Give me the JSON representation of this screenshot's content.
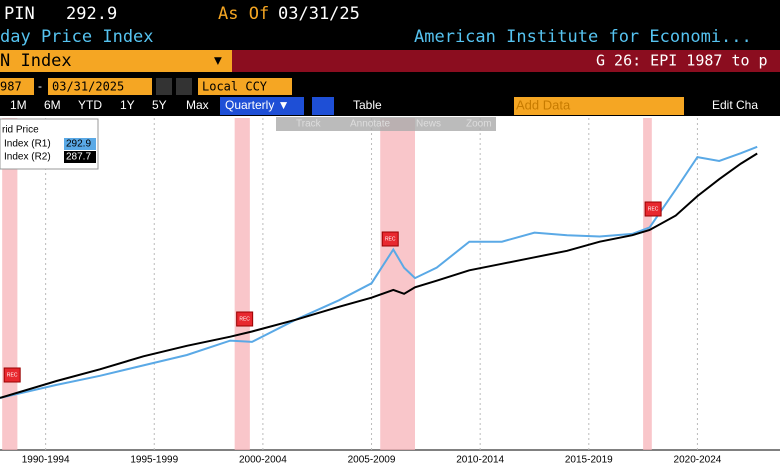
{
  "header": {
    "ticker": "PIN",
    "last_price": "292.9",
    "as_of_label": "As Of",
    "as_of_date": "03/31/25",
    "security_name": "day Price Index",
    "source": "American Institute for Economi...",
    "security_field": "N Index",
    "function_title": "G 26: EPI 1987 to p",
    "start_date": "987",
    "end_date": "03/31/2025",
    "currency": "Local CCY",
    "ranges": [
      "1M",
      "6M",
      "YTD",
      "1Y",
      "5Y",
      "Max"
    ],
    "frequency": "Quarterly ▼",
    "table_button": "Table",
    "add_data": "Add Data",
    "edit_chart": "Edit Cha",
    "tools": [
      "Track",
      "Annotate",
      "News",
      "Zoom"
    ]
  },
  "chart_data": {
    "type": "line",
    "legend_title": "rid Price",
    "x": [
      1990.4,
      1993,
      1995,
      1997,
      1999,
      2001,
      2002,
      2004,
      2006,
      2007.5,
      2008.5,
      2009,
      2009.5,
      2010.5,
      2012,
      2013.5,
      2015,
      2016.5,
      2018,
      2019.5,
      2020.3,
      2021.5,
      2022.5,
      2023.5,
      2024.5,
      2025.25
    ],
    "series": [
      {
        "name": "Index (R1)",
        "last": "292.9",
        "color": "#5aa9e6",
        "values": [
          100,
          110,
          117,
          125,
          133,
          144,
          143,
          160,
          175,
          188,
          214,
          200,
          192,
          200,
          220,
          220,
          227,
          225,
          224,
          226,
          231,
          260,
          285,
          282,
          288,
          292.9
        ]
      },
      {
        "name": "Index (R2)",
        "last": "287.7",
        "color": "#000000",
        "values": [
          100,
          113,
          122,
          132,
          140,
          147,
          151,
          160,
          170,
          177,
          183,
          180,
          185,
          190,
          198,
          203,
          208,
          213,
          220,
          225,
          229,
          240,
          255,
          268,
          280,
          287.7
        ]
      }
    ],
    "recessions": [
      [
        1990.5,
        1991.2
      ],
      [
        2001.2,
        2001.9
      ],
      [
        2007.9,
        2009.5
      ],
      [
        2020.0,
        2020.4
      ]
    ],
    "recession_label": "REC",
    "xlim": [
      1990.4,
      2026.3
    ],
    "ylim": [
      60,
      315
    ],
    "xticks": [
      {
        "value": 1992.5,
        "label": "1990-1994"
      },
      {
        "value": 1997.5,
        "label": "1995-1999"
      },
      {
        "value": 2002.5,
        "label": "2000-2004"
      },
      {
        "value": 2007.5,
        "label": "2005-2009"
      },
      {
        "value": 2012.5,
        "label": "2010-2014"
      },
      {
        "value": 2017.5,
        "label": "2015-2019"
      },
      {
        "value": 2022.5,
        "label": "2020-2024"
      }
    ],
    "grid": true
  }
}
